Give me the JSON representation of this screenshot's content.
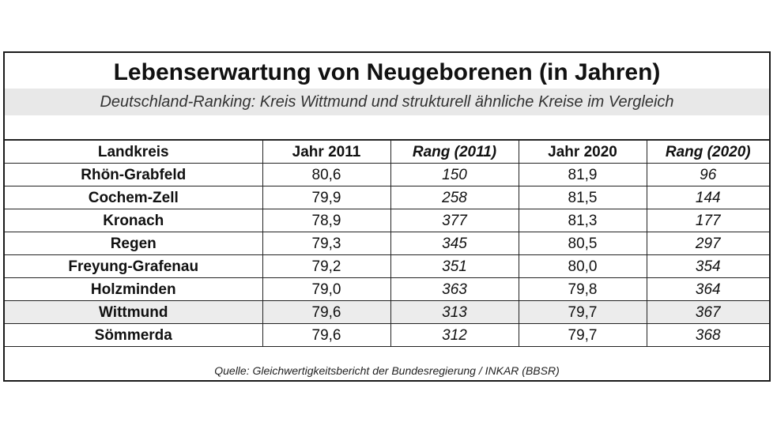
{
  "chart_data": {
    "type": "table",
    "title": "Lebenserwartung von Neugeborenen (in Jahren)",
    "subtitle": "Deutschland-Ranking: Kreis Wittmund und strukturell ähnliche Kreise im Vergleich",
    "columns": [
      "Landkreis",
      "Jahr 2011",
      "Rang (2011)",
      "Jahr 2020",
      "Rang (2020)"
    ],
    "rows": [
      {
        "landkreis": "Rhön-Grabfeld",
        "jahr_2011": "80,6",
        "rang_2011": "150",
        "jahr_2020": "81,9",
        "rang_2020": "96"
      },
      {
        "landkreis": "Cochem-Zell",
        "jahr_2011": "79,9",
        "rang_2011": "258",
        "jahr_2020": "81,5",
        "rang_2020": "144"
      },
      {
        "landkreis": "Kronach",
        "jahr_2011": "78,9",
        "rang_2011": "377",
        "jahr_2020": "81,3",
        "rang_2020": "177"
      },
      {
        "landkreis": "Regen",
        "jahr_2011": "79,3",
        "rang_2011": "345",
        "jahr_2020": "80,5",
        "rang_2020": "297"
      },
      {
        "landkreis": "Freyung-Grafenau",
        "jahr_2011": "79,2",
        "rang_2011": "351",
        "jahr_2020": "80,0",
        "rang_2020": "354"
      },
      {
        "landkreis": "Holzminden",
        "jahr_2011": "79,0",
        "rang_2011": "363",
        "jahr_2020": "79,8",
        "rang_2020": "364"
      },
      {
        "landkreis": "Wittmund",
        "jahr_2011": "79,6",
        "rang_2011": "313",
        "jahr_2020": "79,7",
        "rang_2020": "367"
      },
      {
        "landkreis": "Sömmerda",
        "jahr_2011": "79,6",
        "rang_2011": "312",
        "jahr_2020": "79,7",
        "rang_2020": "368"
      }
    ],
    "highlighted_row": "Wittmund",
    "source": "Quelle: Gleichwertigkeitsbericht der Bundesregierung / INKAR (BBSR)"
  },
  "colors": {
    "border": "#1a1a1a",
    "subtitle_background": "#e8e8e8",
    "highlight_background": "#ececec"
  }
}
